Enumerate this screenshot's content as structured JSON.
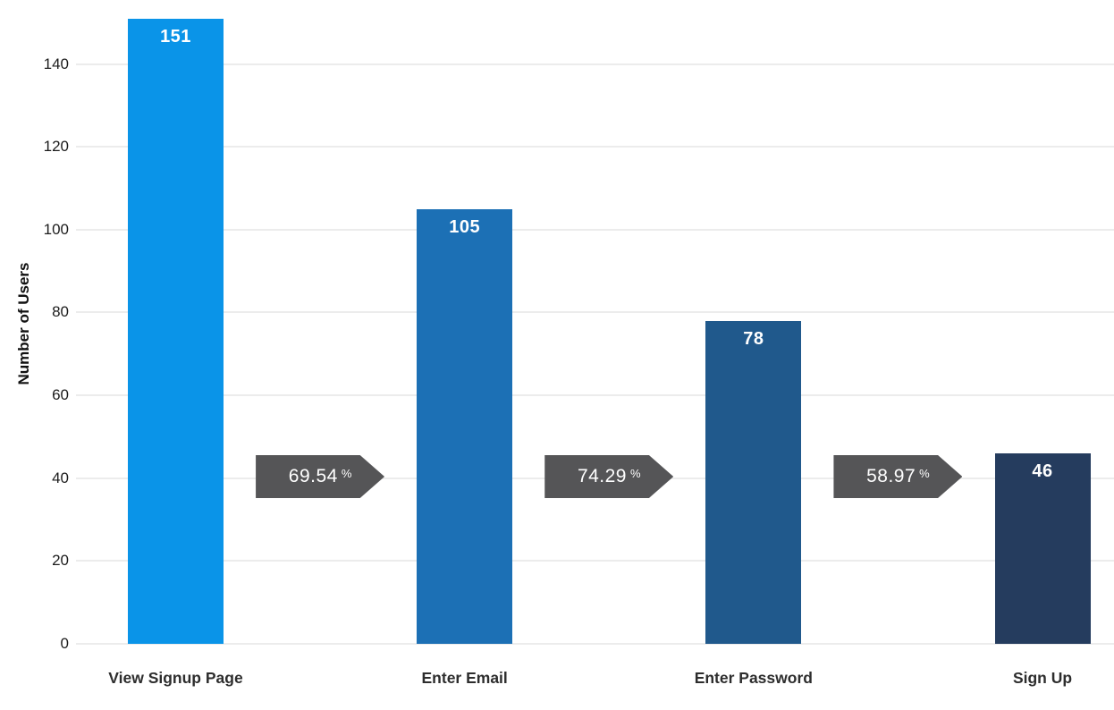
{
  "chart_data": {
    "type": "bar",
    "subtype": "funnel",
    "title": "",
    "xlabel": "",
    "ylabel": "Number of Users",
    "categories": [
      "View Signup Page",
      "Enter Email",
      "Enter Password",
      "Sign Up"
    ],
    "values": [
      151,
      105,
      78,
      46
    ],
    "conversions": [
      "69.54",
      "74.29",
      "58.97"
    ],
    "percent_symbol": "%",
    "yticks": [
      0,
      20,
      40,
      60,
      80,
      100,
      120,
      140
    ],
    "ylim": [
      0,
      155
    ],
    "grid": true,
    "legend": false,
    "bar_colors": [
      "#0a94e8",
      "#1c70b5",
      "#20598c",
      "#253c5e"
    ],
    "arrow_color": "#555557",
    "value_label_color": "#ffffff",
    "gridline_color": "#ececec",
    "axis_text_color": "#1c1c1c"
  }
}
